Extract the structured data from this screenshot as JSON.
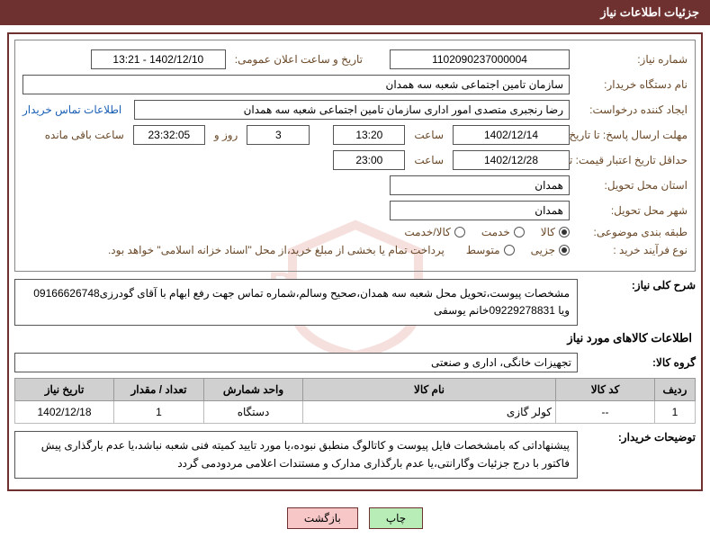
{
  "header": {
    "title": "جزئیات اطلاعات نیاز"
  },
  "fields": {
    "need_no_label": "شماره نیاز:",
    "need_no": "1102090237000004",
    "announce_label": "تاریخ و ساعت اعلان عمومی:",
    "announce_value": "1402/12/10 - 13:21",
    "buyer_org_label": "نام دستگاه خریدار:",
    "buyer_org": "سازمان تامین اجتماعی شعبه سه همدان",
    "requester_label": "ایجاد کننده درخواست:",
    "requester": "رضا رنجبری متصدی امور اداری سازمان تامین اجتماعی شعبه سه همدان",
    "contact_link": "اطلاعات تماس خریدار",
    "deadline_label": "مهلت ارسال پاسخ: تا تاریخ:",
    "deadline_date": "1402/12/14",
    "time_word": "ساعت",
    "deadline_time": "13:20",
    "days_value": "3",
    "days_word": "روز و",
    "remain_time": "23:32:05",
    "remain_word": "ساعت باقی مانده",
    "validity_label": "حداقل تاریخ اعتبار قیمت: تا تاریخ:",
    "validity_date": "1402/12/28",
    "validity_time": "23:00",
    "province_label": "استان محل تحویل:",
    "province": "همدان",
    "city_label": "شهر محل تحویل:",
    "city": "همدان",
    "category_label": "طبقه بندی موضوعی:",
    "cat_opt1": "کالا",
    "cat_opt2": "خدمت",
    "cat_opt3": "کالا/خدمت",
    "process_label": "نوع فرآیند خرید :",
    "proc_opt1": "جزیی",
    "proc_opt2": "متوسط",
    "process_note": "پرداخت تمام یا بخشی از مبلغ خرید،از محل \"اسناد خزانه اسلامی\" خواهد بود.",
    "summary_label": "شرح کلی نیاز:",
    "summary_text": "مشخصات پیوست،تحویل محل شعبه سه همدان،صحیح وسالم،شماره تماس جهت رفع ابهام با آقای گودرزی09166626748 ویا 09229278831خانم یوسفی",
    "goods_section": "اطلاعات کالاهای مورد نیاز",
    "goods_group_label": "گروه کالا:",
    "goods_group": "تجهیزات خانگی، اداری و صنعتی",
    "buyer_notes_label": "توضیحات خریدار:",
    "buyer_notes": "پیشنهاداتی که بامشخصات فایل پیوست و کاتالوگ منطبق نبوده،یا مورد تایید کمیته فنی شعبه نباشد،یا عدم بارگذاری پیش فاکتور با درج جزئیات وگارانتی،یا عدم بارگذاری مدارک و مستندات اعلامی مردودمی گردد"
  },
  "table": {
    "headers": {
      "row": "ردیف",
      "code": "کد کالا",
      "name": "نام کالا",
      "unit": "واحد شمارش",
      "qty": "تعداد / مقدار",
      "date": "تاریخ نیاز"
    },
    "rows": [
      {
        "row": "1",
        "code": "--",
        "name": "کولر گازی",
        "unit": "دستگاه",
        "qty": "1",
        "date": "1402/12/18"
      }
    ]
  },
  "buttons": {
    "print": "چاپ",
    "back": "بازگشت"
  },
  "colors": {
    "brand": "#6f3030",
    "label": "#6b4a2a",
    "th_bg": "#d0d0d0",
    "btn_ok": "#b8edb8",
    "btn_cancel": "#f7c6c6"
  }
}
